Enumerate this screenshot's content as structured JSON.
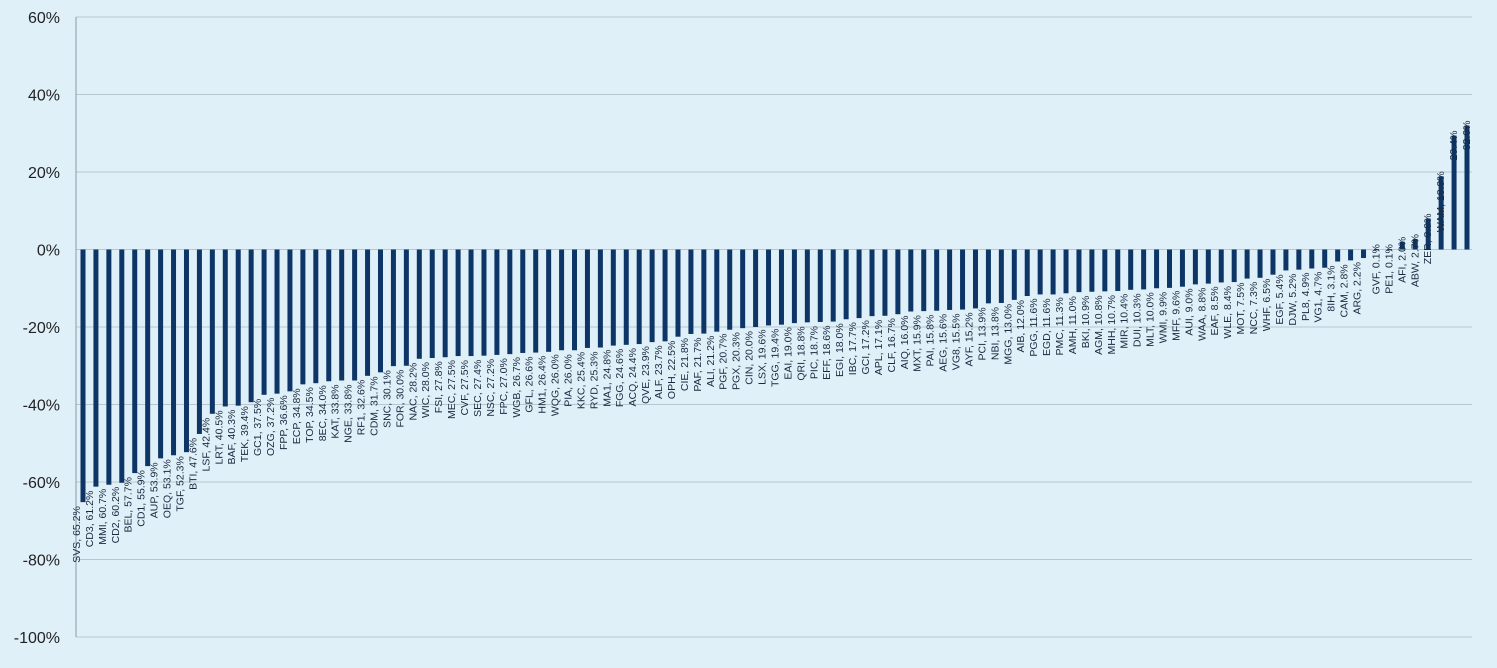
{
  "chart_data": {
    "type": "bar",
    "ylim": [
      -100,
      60
    ],
    "yticks": [
      60,
      40,
      20,
      0,
      -20,
      -40,
      -60,
      -80,
      -100
    ],
    "ytick_labels": [
      "60%",
      "40%",
      "20%",
      "0%",
      "-20%",
      "-40%",
      "-60%",
      "-80%",
      "-100%"
    ],
    "grid": true,
    "legend": "none",
    "bar_color": "#0d3566",
    "background": "#e0f0f8",
    "bars": [
      {
        "label": "SVS, 65.2%",
        "value": -65.2
      },
      {
        "label": "CD3, 61.2%",
        "value": -61.2
      },
      {
        "label": "MMI, 60.7%",
        "value": -60.7
      },
      {
        "label": "CD2, 60.2%",
        "value": -60.2
      },
      {
        "label": "BEL, 57.7%",
        "value": -57.7
      },
      {
        "label": "CD1, 55.9%",
        "value": -55.9
      },
      {
        "label": "AUP, 53.9%",
        "value": -53.9
      },
      {
        "label": "OEQ, 53.1%",
        "value": -53.1
      },
      {
        "label": "TGF, 52.3%",
        "value": -52.3
      },
      {
        "label": "BTI, 47.6%",
        "value": -47.6
      },
      {
        "label": "LSF, 42.4%",
        "value": -42.4
      },
      {
        "label": "LRT, 40.5%",
        "value": -40.5
      },
      {
        "label": "BAF, 40.3%",
        "value": -40.3
      },
      {
        "label": "TEK, 39.4%",
        "value": -39.4
      },
      {
        "label": "GC1, 37.5%",
        "value": -37.5
      },
      {
        "label": "OZG, 37.2%",
        "value": -37.2
      },
      {
        "label": "FPP, 36.6%",
        "value": -36.6
      },
      {
        "label": "ECP, 34.8%",
        "value": -34.8
      },
      {
        "label": "TOP, 34.5%",
        "value": -34.5
      },
      {
        "label": "8EC, 34.0%",
        "value": -34.0
      },
      {
        "label": "KAT, 33.8%",
        "value": -33.8
      },
      {
        "label": "NGE, 33.8%",
        "value": -33.8
      },
      {
        "label": "RF1, 32.6%",
        "value": -32.6
      },
      {
        "label": "CDM, 31.7%",
        "value": -31.7
      },
      {
        "label": "SNC, 30.1%",
        "value": -30.1
      },
      {
        "label": "FOR, 30.0%",
        "value": -30.0
      },
      {
        "label": "NAC, 28.2%",
        "value": -28.2
      },
      {
        "label": "WIC, 28.0%",
        "value": -28.0
      },
      {
        "label": "FSI, 27.8%",
        "value": -27.8
      },
      {
        "label": "MEC, 27.5%",
        "value": -27.5
      },
      {
        "label": "CVF, 27.5%",
        "value": -27.5
      },
      {
        "label": "SEC, 27.4%",
        "value": -27.4
      },
      {
        "label": "NSC, 27.2%",
        "value": -27.2
      },
      {
        "label": "FPC, 27.0%",
        "value": -27.0
      },
      {
        "label": "WGB, 26.7%",
        "value": -26.7
      },
      {
        "label": "GFL, 26.6%",
        "value": -26.6
      },
      {
        "label": "HM1, 26.4%",
        "value": -26.4
      },
      {
        "label": "WQG, 26.0%",
        "value": -26.0
      },
      {
        "label": "PIA, 26.0%",
        "value": -26.0
      },
      {
        "label": "KKC, 25.4%",
        "value": -25.4
      },
      {
        "label": "RYD, 25.3%",
        "value": -25.3
      },
      {
        "label": "MA1, 24.8%",
        "value": -24.8
      },
      {
        "label": "FGG, 24.6%",
        "value": -24.6
      },
      {
        "label": "ACQ, 24.4%",
        "value": -24.4
      },
      {
        "label": "QVE, 23.9%",
        "value": -23.9
      },
      {
        "label": "ALF, 23.7%",
        "value": -23.7
      },
      {
        "label": "OPH, 22.5%",
        "value": -22.5
      },
      {
        "label": "CIE, 21.8%",
        "value": -21.8
      },
      {
        "label": "PAF, 21.7%",
        "value": -21.7
      },
      {
        "label": "ALI, 21.2%",
        "value": -21.2
      },
      {
        "label": "PGF, 20.7%",
        "value": -20.7
      },
      {
        "label": "PGX, 20.3%",
        "value": -20.3
      },
      {
        "label": "CIN, 20.0%",
        "value": -20.0
      },
      {
        "label": "LSX, 19.6%",
        "value": -19.6
      },
      {
        "label": "TGG, 19.4%",
        "value": -19.4
      },
      {
        "label": "EAI, 19.0%",
        "value": -19.0
      },
      {
        "label": "QRI, 18.8%",
        "value": -18.8
      },
      {
        "label": "PIC, 18.7%",
        "value": -18.7
      },
      {
        "label": "EFF, 18.6%",
        "value": -18.6
      },
      {
        "label": "EGI, 18.0%",
        "value": -18.0
      },
      {
        "label": "IBC, 17.7%",
        "value": -17.7
      },
      {
        "label": "GCI, 17.2%",
        "value": -17.2
      },
      {
        "label": "APL, 17.1%",
        "value": -17.1
      },
      {
        "label": "CLF, 16.7%",
        "value": -16.7
      },
      {
        "label": "AIQ, 16.0%",
        "value": -16.0
      },
      {
        "label": "MXT, 15.9%",
        "value": -15.9
      },
      {
        "label": "PAI, 15.8%",
        "value": -15.8
      },
      {
        "label": "AEG, 15.6%",
        "value": -15.6
      },
      {
        "label": "VG8, 15.5%",
        "value": -15.5
      },
      {
        "label": "AYF, 15.2%",
        "value": -15.2
      },
      {
        "label": "PCI, 13.9%",
        "value": -13.9
      },
      {
        "label": "NBI, 13.8%",
        "value": -13.8
      },
      {
        "label": "MGG, 13.0%",
        "value": -13.0
      },
      {
        "label": "AIB, 12.0%",
        "value": -12.0
      },
      {
        "label": "PGG, 11.6%",
        "value": -11.6
      },
      {
        "label": "EGD, 11.6%",
        "value": -11.6
      },
      {
        "label": "PMC, 11.3%",
        "value": -11.3
      },
      {
        "label": "AMH, 11.0%",
        "value": -11.0
      },
      {
        "label": "BKI, 10.9%",
        "value": -10.9
      },
      {
        "label": "AGM, 10.8%",
        "value": -10.8
      },
      {
        "label": "MHH, 10.7%",
        "value": -10.7
      },
      {
        "label": "MIR, 10.4%",
        "value": -10.4
      },
      {
        "label": "DUI, 10.3%",
        "value": -10.3
      },
      {
        "label": "MLT, 10.0%",
        "value": -10.0
      },
      {
        "label": "WMI, 9.9%",
        "value": -9.9
      },
      {
        "label": "MFF, 9.6%",
        "value": -9.6
      },
      {
        "label": "AUI, 9.0%",
        "value": -9.0
      },
      {
        "label": "WAA, 8.8%",
        "value": -8.8
      },
      {
        "label": "EAF, 8.5%",
        "value": -8.5
      },
      {
        "label": "WLE, 8.4%",
        "value": -8.4
      },
      {
        "label": "MOT, 7.5%",
        "value": -7.5
      },
      {
        "label": "NCC, 7.3%",
        "value": -7.3
      },
      {
        "label": "WHF, 6.5%",
        "value": -6.5
      },
      {
        "label": "EGF, 5.4%",
        "value": -5.4
      },
      {
        "label": "DJW, 5.2%",
        "value": -5.2
      },
      {
        "label": "PL8, 4.9%",
        "value": -4.9
      },
      {
        "label": "VG1, 4.7%",
        "value": -4.7
      },
      {
        "label": "8IH, 3.1%",
        "value": -3.1
      },
      {
        "label": "CAM, 2.8%",
        "value": -2.8
      },
      {
        "label": "ARG, 2.2%",
        "value": -2.2
      },
      {
        "label": "GVF, 0.1%",
        "value": 0.1
      },
      {
        "label": "PE1, 0.1%",
        "value": 0.1
      },
      {
        "label": "AFI, 2.0%",
        "value": 2.0
      },
      {
        "label": "ABW, 2.7%",
        "value": 2.7
      },
      {
        "label": "ZER, 8.0%",
        "value": 8.0
      },
      {
        "label": "WAM, 18.9%",
        "value": 18.9
      },
      {
        "label": "29.4%",
        "value": 29.4
      },
      {
        "label": "32.0%",
        "value": 32.0
      }
    ]
  }
}
